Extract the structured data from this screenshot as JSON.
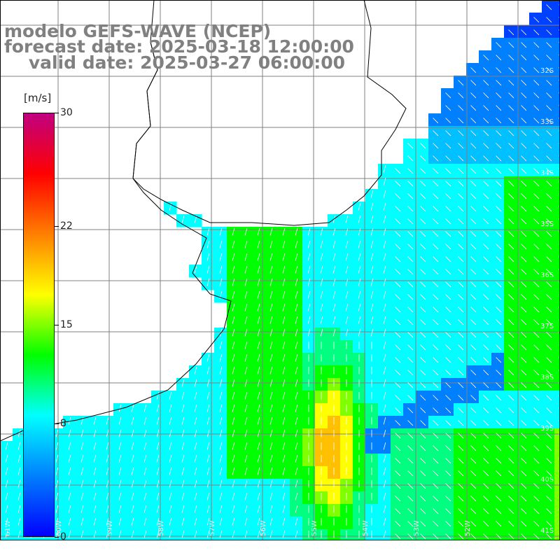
{
  "title": {
    "line1": "modelo GEFS-WAVE (NCEP)",
    "line2": "forecast date: 2025-03-18 12:00:00",
    "line3": "    valid date: 2025-03-27 06:00:00"
  },
  "colorbar": {
    "units": "[m/s]",
    "min": 0,
    "max": 30,
    "ticks": [
      {
        "value": 30,
        "label": "30"
      },
      {
        "value": 22,
        "label": "22"
      },
      {
        "value": 15,
        "label": "15"
      },
      {
        "value": 8,
        "label": "8"
      },
      {
        "value": 0,
        "label": "0"
      }
    ],
    "colors": [
      "#0000ff",
      "#0040ff",
      "#0080ff",
      "#00c0ff",
      "#00ffff",
      "#00ff80",
      "#00ff00",
      "#80ff00",
      "#ffff00",
      "#ffc000",
      "#ff8000",
      "#ff4000",
      "#ff0000",
      "#e00040",
      "#c00080"
    ]
  },
  "map": {
    "lat_labels": [
      "32S",
      "33S",
      "34S",
      "35S",
      "36S",
      "37S",
      "38S",
      "39S",
      "40S",
      "41S"
    ],
    "lon_labels": [
      "61W",
      "60W",
      "59W",
      "58W",
      "57W",
      "56W",
      "55W",
      "54W",
      "53W",
      "52W"
    ],
    "land_color": "#ffffff",
    "coast_color": "#000000",
    "grid_color": "#808080",
    "arrow_color": "#ffffff"
  }
}
